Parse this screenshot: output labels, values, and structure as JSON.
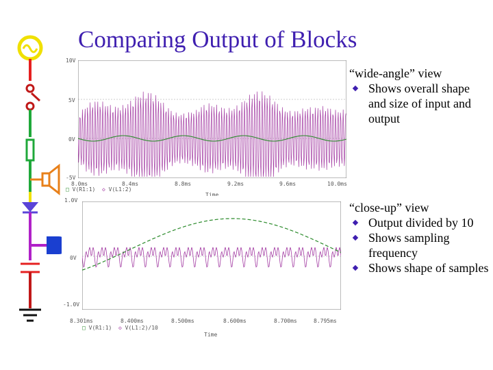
{
  "slide": {
    "title": "Comparing Output of Blocks",
    "accent": "#3f1fb0",
    "bullet_color": "#3f1fb0"
  },
  "wide_view": {
    "heading": "“wide-angle” view",
    "bullets": [
      "Shows overall shape and size of input and output"
    ]
  },
  "closeup_view": {
    "heading": "“close-up” view",
    "bullets": [
      "Output divided by 10",
      "Shows sampling frequency",
      "Shows shape of samples"
    ]
  },
  "top_plot": {
    "y_ticks": [
      "10V",
      "5V",
      "0V",
      "-5V"
    ],
    "x_ticks": [
      "8.0ms",
      "8.4ms",
      "8.8ms",
      "9.2ms",
      "9.6ms",
      "10.0ms"
    ],
    "x_label": "Time",
    "legend": [
      {
        "marker": "□",
        "text": "V(R1:1)"
      },
      {
        "marker": "◇",
        "text": "V(L1:2)"
      }
    ],
    "colors": {
      "input": "#2a8a2a",
      "output": "#a23aa2"
    }
  },
  "bottom_plot": {
    "y_ticks": [
      "1.0V",
      "0V",
      "-1.0V"
    ],
    "x_ticks": [
      "8.301ms",
      "8.400ms",
      "8.500ms",
      "8.600ms",
      "8.700ms",
      "8.795ms"
    ],
    "x_label": "Time",
    "legend": [
      {
        "marker": "□",
        "text": "V(R1:1)"
      },
      {
        "marker": "◇",
        "text": "V(L1:2)/10"
      }
    ],
    "colors": {
      "input": "#2a8a2a",
      "output": "#a23aa2"
    }
  },
  "side_icons": [
    "ac-source-icon",
    "switch-icon",
    "resistor-icon",
    "speaker-icon",
    "diode-icon",
    "transistor-icon",
    "capacitor-icon",
    "ground-icon"
  ]
}
